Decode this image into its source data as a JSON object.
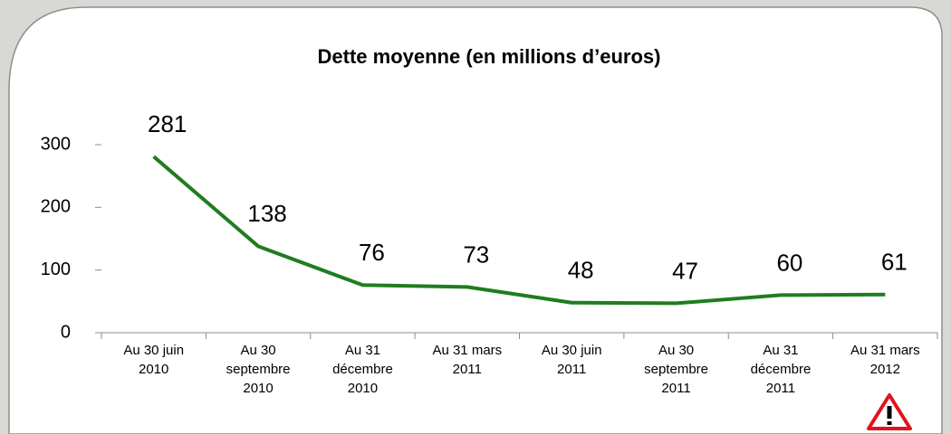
{
  "chart_data": {
    "type": "line",
    "title": "Dette moyenne (en millions d’euros)",
    "categories": [
      "Au 30 juin\n2010",
      "Au 30\nseptembre\n2010",
      "Au 31\ndécembre\n2010",
      "Au 31 mars\n2011",
      "Au 30 juin\n2011",
      "Au 30\nseptembre\n2011",
      "Au 31\ndécembre\n2011",
      "Au 31 mars\n2012"
    ],
    "values": [
      281,
      138,
      76,
      73,
      48,
      47,
      60,
      61
    ],
    "color": "#1f7d1f",
    "ylim": [
      0,
      300
    ],
    "yticks": [
      0,
      100,
      200,
      300
    ]
  }
}
